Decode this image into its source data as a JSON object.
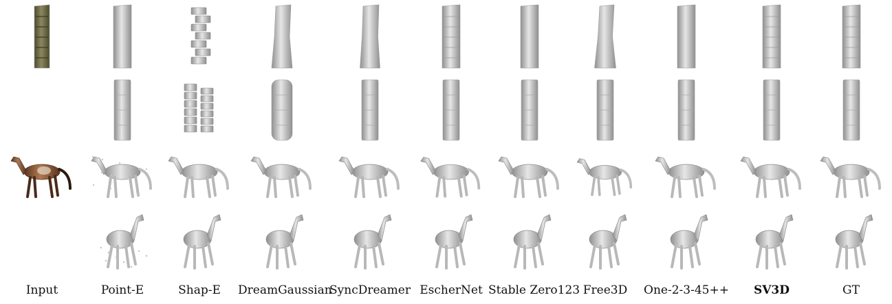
{
  "columns": [
    {
      "key": "input",
      "label": "Input",
      "bold": false
    },
    {
      "key": "point_e",
      "label": "Point-E",
      "bold": false
    },
    {
      "key": "shap_e",
      "label": "Shap-E",
      "bold": false
    },
    {
      "key": "dreamgaussian",
      "label": "DreamGaussian",
      "bold": false
    },
    {
      "key": "syncdreamer",
      "label": "SyncDreamer",
      "bold": false
    },
    {
      "key": "eschernet",
      "label": "EscherNet",
      "bold": false
    },
    {
      "key": "stable_zero123",
      "label": "Stable Zero123",
      "bold": false
    },
    {
      "key": "free3d",
      "label": "Free3D",
      "bold": false
    },
    {
      "key": "one2345pp",
      "label": "One-2-3-45++",
      "bold": false
    },
    {
      "key": "sv3d",
      "label": "SV3D",
      "bold": true
    },
    {
      "key": "gt",
      "label": "GT",
      "bold": false
    }
  ],
  "rows": [
    {
      "subject": "block-tower",
      "view": "front"
    },
    {
      "subject": "block-tower",
      "view": "side"
    },
    {
      "subject": "horse",
      "view": "side"
    },
    {
      "subject": "horse",
      "view": "three-quarter"
    }
  ],
  "colors": {
    "mesh_light": "#e6e6e6",
    "mesh_mid": "#c4c4c4",
    "mesh_dark": "#8f8f8f",
    "input_block": "#6f6a45",
    "input_horse": "#8a5a3a"
  }
}
